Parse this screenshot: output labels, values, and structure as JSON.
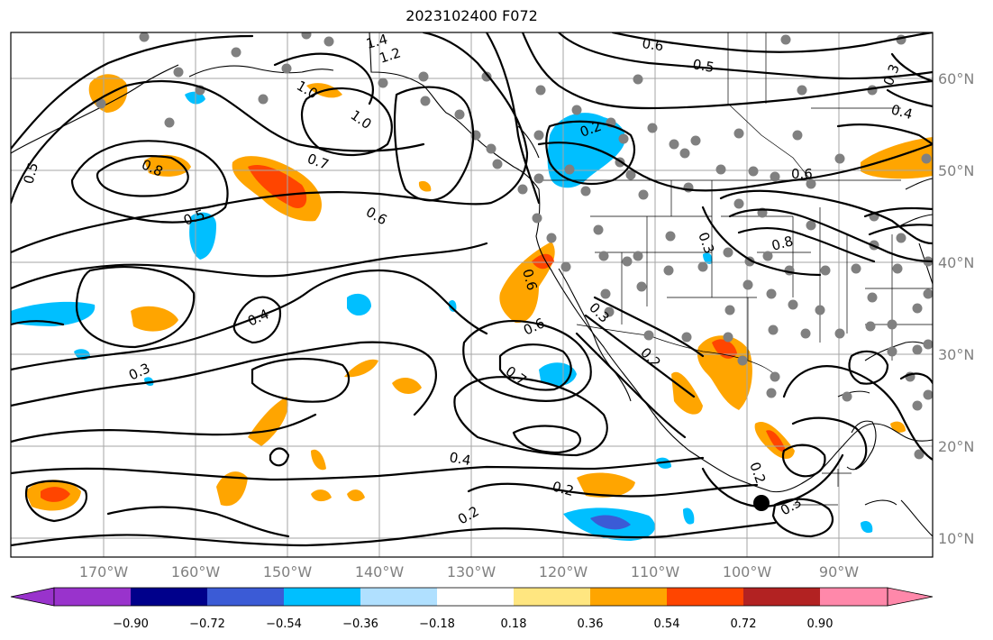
{
  "title": "2023102400 F072",
  "lat_labels": [
    "10°N",
    "20°N",
    "30°N",
    "40°N",
    "50°N",
    "60°N"
  ],
  "lon_labels": [
    "170°W",
    "160°W",
    "150°W",
    "140°W",
    "130°W",
    "120°W",
    "110°W",
    "100°W",
    "90°W"
  ],
  "colorbar": {
    "ticks": [
      "−0.90",
      "−0.72",
      "−0.54",
      "−0.36",
      "−0.18",
      "0.18",
      "0.36",
      "0.54",
      "0.72",
      "0.90"
    ],
    "colors": [
      "#9933cc",
      "#00008b",
      "#3b5bd6",
      "#00bfff",
      "#b0e0ff",
      "#ffffff",
      "#ffe680",
      "#ffa500",
      "#ff4500",
      "#b22222",
      "#ff88aa"
    ]
  },
  "contour_labels": [
    "1.4",
    "1.2",
    "1.0",
    "1.0",
    "0.6",
    "0.5",
    "0.3",
    "0.4",
    "0.2",
    "0.8",
    "0.7",
    "0.6",
    "0.5",
    "0.5",
    "0.6",
    "0.8",
    "0.4",
    "0.3",
    "0.6",
    "0.7",
    "0.3",
    "0.2",
    "0.3",
    "0.4",
    "0.2",
    "0.2",
    "0.2",
    "0.3",
    "0.6"
  ],
  "colors": {
    "contour": "#000000",
    "station": "#808080",
    "grid": "#a6a6a6",
    "marker": "#000000"
  }
}
